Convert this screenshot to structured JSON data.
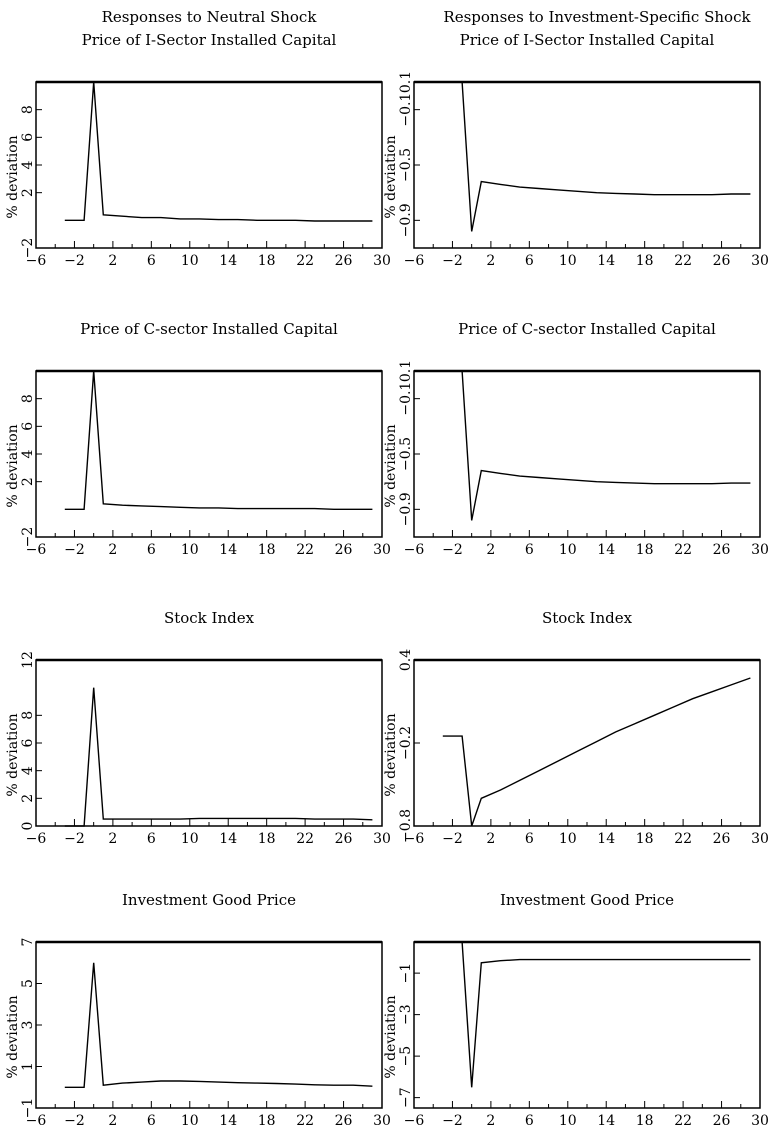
{
  "column_titles": [
    "Responses to Neutral Shock",
    "Responses to Investment-Specific Shock"
  ],
  "ylabel": "% deviation",
  "chart_data": [
    {
      "type": "line",
      "title": "Price of I-Sector Installed Capital",
      "xlim": [
        -6,
        30
      ],
      "ylim": [
        -2,
        10
      ],
      "xticks": [
        -6,
        -2,
        2,
        6,
        10,
        14,
        18,
        22,
        26,
        30
      ],
      "yticks": [
        -2,
        2,
        4,
        6,
        8
      ],
      "xlabel": "",
      "ylabel": "% deviation",
      "series": [
        {
          "x": [
            -3,
            -1,
            0,
            1,
            3,
            5,
            7,
            9,
            11,
            13,
            15,
            17,
            19,
            21,
            23,
            25,
            27,
            29
          ],
          "y": [
            0,
            0,
            10,
            0.4,
            0.3,
            0.2,
            0.2,
            0.1,
            0.1,
            0.05,
            0.05,
            0,
            0,
            0,
            -0.05,
            -0.05,
            -0.05,
            -0.05
          ]
        }
      ]
    },
    {
      "type": "line",
      "title": "Price of I-Sector Installed Capital",
      "xlim": [
        -6,
        30
      ],
      "ylim": [
        -1.1,
        0.1
      ],
      "xticks": [
        -6,
        -2,
        2,
        6,
        10,
        14,
        18,
        22,
        26,
        30
      ],
      "yticks": [
        -0.9,
        -0.5,
        -0.1,
        0.1
      ],
      "xlabel": "",
      "ylabel": "% deviation",
      "series": [
        {
          "x": [
            -3,
            -1,
            0,
            1,
            3,
            5,
            7,
            9,
            11,
            13,
            15,
            17,
            19,
            21,
            23,
            25,
            27,
            29
          ],
          "y": [
            0.1,
            0.1,
            -0.98,
            -0.62,
            -0.64,
            -0.66,
            -0.67,
            -0.68,
            -0.69,
            -0.7,
            -0.705,
            -0.71,
            -0.715,
            -0.715,
            -0.715,
            -0.715,
            -0.71,
            -0.71
          ]
        }
      ]
    },
    {
      "type": "line",
      "title": "Price of C-sector Installed Capital",
      "xlim": [
        -6,
        30
      ],
      "ylim": [
        -2,
        10
      ],
      "xticks": [
        -6,
        -2,
        2,
        6,
        10,
        14,
        18,
        22,
        26,
        30
      ],
      "yticks": [
        -2,
        2,
        4,
        6,
        8
      ],
      "xlabel": "",
      "ylabel": "% deviation",
      "series": [
        {
          "x": [
            -3,
            -1,
            0,
            1,
            3,
            5,
            7,
            9,
            11,
            13,
            15,
            17,
            19,
            21,
            23,
            25,
            27,
            29
          ],
          "y": [
            0,
            0,
            10,
            0.4,
            0.3,
            0.25,
            0.2,
            0.15,
            0.1,
            0.1,
            0.05,
            0.05,
            0.05,
            0.05,
            0.05,
            0,
            0,
            0
          ]
        }
      ]
    },
    {
      "type": "line",
      "title": "Price of C-sector Installed Capital",
      "xlim": [
        -6,
        30
      ],
      "ylim": [
        -1.1,
        0.1
      ],
      "xticks": [
        -6,
        -2,
        2,
        6,
        10,
        14,
        18,
        22,
        26,
        30
      ],
      "yticks": [
        -0.9,
        -0.5,
        -0.1,
        0.1
      ],
      "xlabel": "",
      "ylabel": "% deviation",
      "series": [
        {
          "x": [
            -3,
            -1,
            0,
            1,
            3,
            5,
            7,
            9,
            11,
            13,
            15,
            17,
            19,
            21,
            23,
            25,
            27,
            29
          ],
          "y": [
            0.1,
            0.1,
            -0.98,
            -0.62,
            -0.64,
            -0.66,
            -0.67,
            -0.68,
            -0.69,
            -0.7,
            -0.705,
            -0.71,
            -0.715,
            -0.715,
            -0.715,
            -0.715,
            -0.71,
            -0.71
          ]
        }
      ]
    },
    {
      "type": "line",
      "title": "Stock Index",
      "xlim": [
        -6,
        30
      ],
      "ylim": [
        0,
        12
      ],
      "xticks": [
        -6,
        -2,
        2,
        6,
        10,
        14,
        18,
        22,
        26,
        30
      ],
      "yticks": [
        0,
        2,
        4,
        6,
        8,
        12
      ],
      "xlabel": "",
      "ylabel": "% deviation",
      "series": [
        {
          "x": [
            -3,
            -1,
            0,
            1,
            3,
            5,
            7,
            9,
            11,
            13,
            15,
            17,
            19,
            21,
            23,
            25,
            27,
            29
          ],
          "y": [
            0,
            0,
            10,
            0.5,
            0.5,
            0.5,
            0.5,
            0.5,
            0.55,
            0.55,
            0.55,
            0.55,
            0.55,
            0.55,
            0.5,
            0.5,
            0.5,
            0.45
          ]
        }
      ]
    },
    {
      "type": "line",
      "title": "Stock Index",
      "xlim": [
        -6,
        30
      ],
      "ylim": [
        -0.8,
        0.4
      ],
      "xticks": [
        -6,
        -2,
        2,
        6,
        10,
        14,
        18,
        22,
        26,
        30
      ],
      "yticks": [
        -0.8,
        -0.2,
        0.4
      ],
      "xlabel": "",
      "ylabel": "% deviation",
      "series": [
        {
          "x": [
            -3,
            -1,
            0,
            1,
            3,
            5,
            7,
            9,
            11,
            13,
            15,
            17,
            19,
            21,
            23,
            25,
            27,
            29
          ],
          "y": [
            -0.15,
            -0.15,
            -0.8,
            -0.6,
            -0.54,
            -0.47,
            -0.4,
            -0.33,
            -0.26,
            -0.19,
            -0.12,
            -0.06,
            0,
            0.06,
            0.12,
            0.17,
            0.22,
            0.27
          ]
        }
      ]
    },
    {
      "type": "line",
      "title": "Investment Good Price",
      "xlim": [
        -6,
        30
      ],
      "ylim": [
        -1,
        7
      ],
      "xticks": [
        -6,
        -2,
        2,
        6,
        10,
        14,
        18,
        22,
        26,
        30
      ],
      "yticks": [
        -1,
        1,
        3,
        5,
        7
      ],
      "xlabel": "",
      "ylabel": "% deviation",
      "series": [
        {
          "x": [
            -3,
            -1,
            0,
            1,
            3,
            5,
            7,
            9,
            11,
            13,
            15,
            17,
            19,
            21,
            23,
            25,
            27,
            29
          ],
          "y": [
            0,
            0,
            6,
            0.1,
            0.2,
            0.25,
            0.3,
            0.3,
            0.28,
            0.25,
            0.22,
            0.2,
            0.18,
            0.15,
            0.12,
            0.1,
            0.1,
            0.05
          ]
        }
      ]
    },
    {
      "type": "line",
      "title": "Investment Good Price",
      "xlim": [
        -6,
        30
      ],
      "ylim": [
        -7.5,
        0.5
      ],
      "xticks": [
        -6,
        -2,
        2,
        6,
        10,
        14,
        18,
        22,
        26,
        30
      ],
      "yticks": [
        -7,
        -5,
        -3,
        -1
      ],
      "xlabel": "",
      "ylabel": "% deviation",
      "series": [
        {
          "x": [
            -3,
            -1,
            0,
            1,
            3,
            5,
            7,
            9,
            11,
            13,
            15,
            17,
            19,
            21,
            23,
            25,
            27,
            29
          ],
          "y": [
            0.5,
            0.5,
            -6.5,
            -0.5,
            -0.4,
            -0.35,
            -0.35,
            -0.35,
            -0.35,
            -0.35,
            -0.35,
            -0.35,
            -0.35,
            -0.35,
            -0.35,
            -0.35,
            -0.35,
            -0.35
          ]
        }
      ]
    }
  ]
}
